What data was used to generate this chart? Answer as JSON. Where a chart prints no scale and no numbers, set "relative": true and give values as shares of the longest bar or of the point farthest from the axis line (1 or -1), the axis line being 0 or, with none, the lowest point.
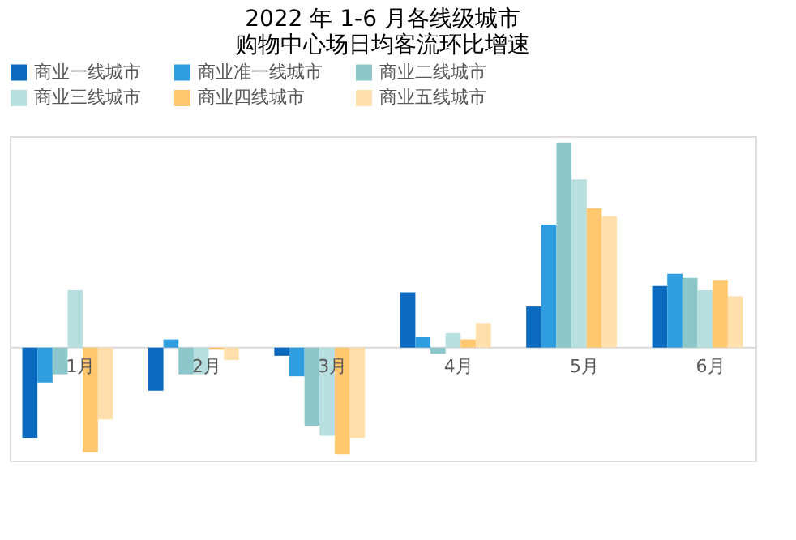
{
  "chart_data": {
    "type": "bar",
    "title": [
      "2022 年 1-6 月各线级城市",
      "购物中心场日均客流环比增速"
    ],
    "relative": true,
    "legend": "top",
    "grid": false,
    "categories": [
      "1月",
      "2月",
      "3月",
      "4月",
      "5月",
      "6月"
    ],
    "series": [
      {
        "name": "商业一线城市",
        "color": "#0a6abf",
        "values": [
          -0.44,
          -0.21,
          -0.04,
          0.27,
          0.2,
          0.3
        ]
      },
      {
        "name": "商业准一线城市",
        "color": "#2e9ee0",
        "values": [
          -0.17,
          0.04,
          -0.14,
          0.05,
          0.6,
          0.36
        ]
      },
      {
        "name": "商业二线城市",
        "color": "#8cc8cb",
        "values": [
          -0.13,
          -0.13,
          -0.38,
          -0.03,
          1,
          0.34
        ]
      },
      {
        "name": "商业三线城市",
        "color": "#b8dfe0",
        "values": [
          0.28,
          -0.13,
          -0.43,
          0.07,
          0.82,
          0.28
        ]
      },
      {
        "name": "商业四线城市",
        "color": "#ffc76e",
        "values": [
          -0.51,
          -0.01,
          -0.52,
          0.04,
          0.68,
          0.33
        ]
      },
      {
        "name": "商业五线城市",
        "color": "#ffe0ad",
        "values": [
          -0.35,
          -0.06,
          -0.44,
          0.12,
          0.64,
          0.25
        ]
      }
    ]
  }
}
